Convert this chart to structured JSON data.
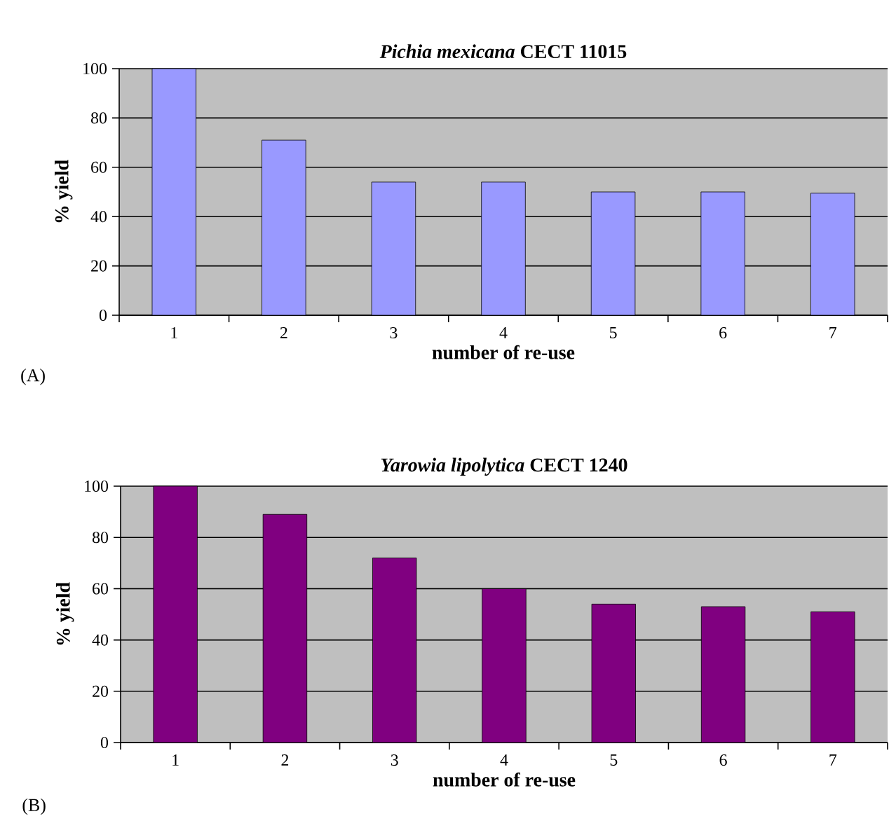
{
  "chart_data": [
    {
      "type": "bar",
      "title": "*Pichia mexicana* CECT 11015",
      "xlabel": "number of re-use",
      "ylabel": "% yield",
      "categories": [
        "1",
        "2",
        "3",
        "4",
        "5",
        "6",
        "7"
      ],
      "values": [
        100,
        71,
        54,
        54,
        50,
        50,
        49.5
      ],
      "color": "#9999ff",
      "ylim": [
        0,
        100
      ],
      "yticks": [
        0,
        20,
        40,
        60,
        80,
        100
      ],
      "grid": "y",
      "annotations": [
        "(A)"
      ]
    },
    {
      "type": "bar",
      "title": "*Yarowia lipolytica* CECT 1240",
      "xlabel": "number of re-use",
      "ylabel": "% yield",
      "categories": [
        "1",
        "2",
        "3",
        "4",
        "5",
        "6",
        "7"
      ],
      "values": [
        100,
        89,
        72,
        60,
        54,
        53,
        51
      ],
      "color": "#800080",
      "ylim": [
        0,
        100
      ],
      "yticks": [
        0,
        20,
        40,
        60,
        80,
        100
      ],
      "grid": "y",
      "annotations": [
        "(B)"
      ]
    }
  ]
}
